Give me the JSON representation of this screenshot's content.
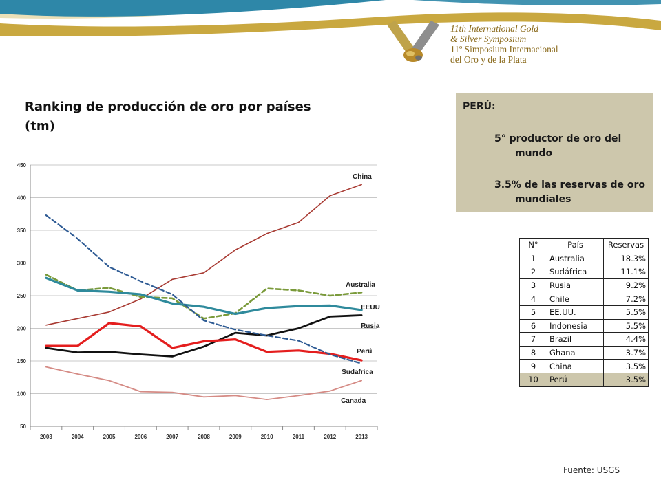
{
  "header": {
    "symposium_en_1": "11th International Gold",
    "symposium_en_2": "& Silver Symposium",
    "symposium_es_1": "11º Simposium Internacional",
    "symposium_es_2": "del Oro y de la Plata",
    "colors": {
      "gold": "#c9a840",
      "blue": "#2e87a8"
    }
  },
  "title": "Ranking de producción de oro por países (tm)",
  "peru_box": {
    "heading": "PERÚ:",
    "point1_a": "5° productor de oro del",
    "point1_b": "mundo",
    "point2_a": "3.5% de las reservas de oro",
    "point2_b": "mundiales"
  },
  "ranking_table": {
    "headers": [
      "N°",
      "País",
      "Reservas"
    ],
    "rows": [
      [
        "1",
        "Australia",
        "18.3%"
      ],
      [
        "2",
        "Sudáfrica",
        "11.1%"
      ],
      [
        "3",
        "Rusia",
        "9.2%"
      ],
      [
        "4",
        "Chile",
        "7.2%"
      ],
      [
        "5",
        "EE.UU.",
        "5.5%"
      ],
      [
        "6",
        "Indonesia",
        "5.5%"
      ],
      [
        "7",
        "Brazil",
        "4.4%"
      ],
      [
        "8",
        "Ghana",
        "3.7%"
      ],
      [
        "9",
        "China",
        "3.5%"
      ],
      [
        "10",
        "Perú",
        "3.5%"
      ]
    ]
  },
  "source": "Fuente: USGS",
  "chart_data": {
    "type": "line",
    "x": [
      "2003",
      "2004",
      "2005",
      "2006",
      "2007",
      "2008",
      "2009",
      "2010",
      "2011",
      "2012",
      "2013"
    ],
    "ylim": [
      50,
      450
    ],
    "yticks": [
      50,
      100,
      150,
      200,
      250,
      300,
      350,
      400,
      450
    ],
    "grid": true,
    "series": [
      {
        "name": "China",
        "color": "#a83a32",
        "width": 1.6,
        "dash": "",
        "values": [
          205,
          215,
          225,
          245,
          275,
          285,
          320,
          345,
          362,
          403,
          420
        ]
      },
      {
        "name": "Australia",
        "color": "#7a9a3a",
        "width": 2.6,
        "dash": "7,4",
        "values": [
          282,
          258,
          262,
          248,
          246,
          215,
          223,
          261,
          258,
          250,
          255
        ]
      },
      {
        "name": "EEUU",
        "color": "#2f8a9c",
        "width": 3.2,
        "dash": "",
        "values": [
          277,
          258,
          256,
          252,
          238,
          233,
          222,
          231,
          234,
          235,
          228
        ]
      },
      {
        "name": "Rusia",
        "color": "#111111",
        "width": 2.8,
        "dash": "",
        "values": [
          170,
          163,
          164,
          160,
          157,
          172,
          193,
          189,
          200,
          218,
          220
        ]
      },
      {
        "name": "Perú",
        "color": "#e41e1e",
        "width": 3.2,
        "dash": "",
        "values": [
          173,
          173,
          208,
          203,
          170,
          180,
          183,
          164,
          166,
          161,
          151
        ]
      },
      {
        "name": "Sudafrica",
        "color": "#2e5b94",
        "width": 2.2,
        "dash": "7,4",
        "values": [
          373,
          337,
          294,
          272,
          252,
          212,
          198,
          189,
          181,
          160,
          146
        ]
      },
      {
        "name": "Canada",
        "color": "#d58b85",
        "width": 1.8,
        "dash": "",
        "values": [
          141,
          130,
          120,
          103,
          102,
          95,
          97,
          91,
          97,
          104,
          120
        ]
      }
    ]
  }
}
